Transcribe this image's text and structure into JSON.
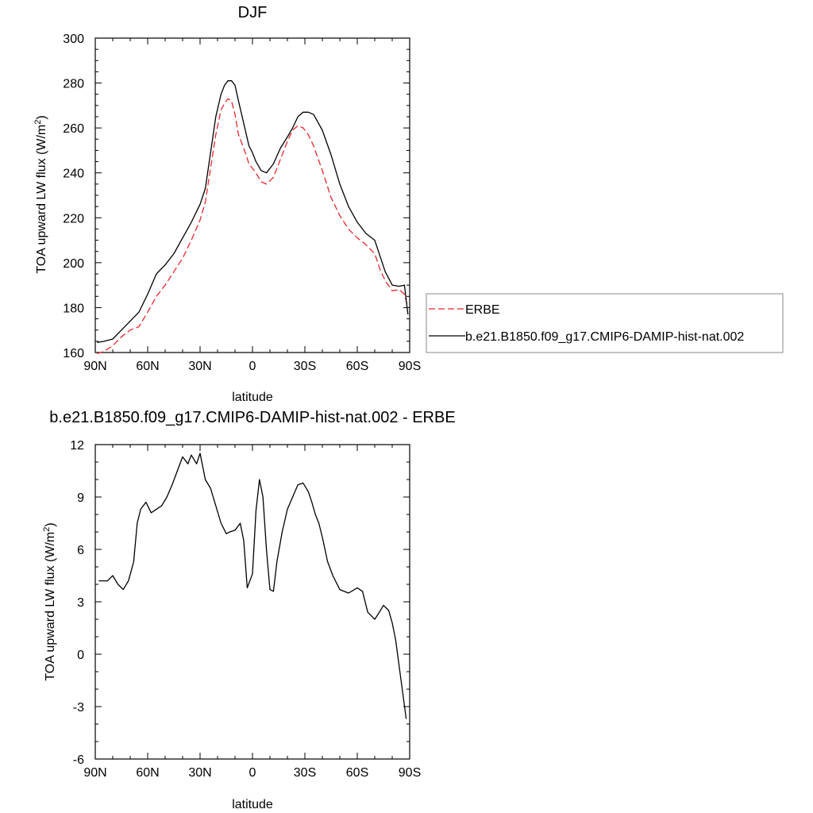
{
  "chart_data": [
    {
      "type": "line",
      "title": "DJF",
      "xlabel": "latitude",
      "ylabel": "TOA upward LW flux (W/m",
      "ylabel_superscript": "2",
      "ylabel_suffix": ")",
      "xlim": [
        -90,
        90
      ],
      "ylim": [
        160,
        300
      ],
      "xticks": [
        -90,
        -60,
        -30,
        0,
        30,
        60,
        90
      ],
      "xtick_labels": [
        "90N",
        "60N",
        "30N",
        "0",
        "30S",
        "60S",
        "90S"
      ],
      "yticks": [
        160,
        180,
        200,
        220,
        240,
        260,
        280,
        300
      ],
      "ytick_labels": [
        "160",
        "180",
        "200",
        "220",
        "240",
        "260",
        "280",
        "300"
      ],
      "legend_position": "right",
      "series": [
        {
          "name": "ERBE",
          "color": "#e8262b",
          "dash": "dashed",
          "x": [
            -89,
            -85,
            -80,
            -75,
            -70,
            -65,
            -60,
            -55,
            -50,
            -45,
            -40,
            -35,
            -30,
            -27,
            -24,
            -21,
            -18,
            -16,
            -14,
            -12,
            -10,
            -8,
            -5,
            -2,
            0,
            2,
            5,
            8,
            12,
            16,
            20,
            23,
            26,
            29,
            32,
            35,
            40,
            45,
            50,
            55,
            60,
            65,
            70,
            73,
            76,
            80,
            84,
            87,
            89
          ],
          "y": [
            159.5,
            160.5,
            163,
            167,
            170,
            171.5,
            178,
            185,
            190,
            196,
            202,
            210,
            219,
            227,
            242,
            257,
            268,
            271,
            273,
            272,
            266,
            257,
            251,
            244,
            242,
            240,
            236,
            235,
            238,
            246,
            254,
            259,
            261,
            260,
            257,
            252,
            241,
            229,
            221,
            215,
            211,
            208,
            204,
            197,
            192,
            187.5,
            188,
            186,
            180
          ]
        },
        {
          "name": "b.e21.B1850.f09_g17.CMIP6-DAMIP-hist-nat.002",
          "color": "#000000",
          "dash": "solid",
          "x": [
            -89,
            -85,
            -80,
            -75,
            -70,
            -65,
            -60,
            -55,
            -50,
            -45,
            -40,
            -35,
            -30,
            -27,
            -24,
            -21,
            -18,
            -16,
            -14,
            -12,
            -10,
            -8,
            -5,
            -2,
            0,
            2,
            5,
            8,
            12,
            16,
            20,
            23,
            26,
            29,
            32,
            35,
            40,
            45,
            50,
            55,
            60,
            65,
            70,
            73,
            76,
            80,
            84,
            87,
            89
          ],
          "y": [
            164.5,
            165,
            166,
            170,
            174,
            178,
            186,
            195,
            199,
            204,
            211,
            218,
            226,
            233,
            249,
            265,
            275,
            279,
            281,
            281,
            279,
            272,
            262,
            252,
            249,
            245,
            241,
            240,
            244,
            251,
            256,
            260,
            265,
            267,
            267,
            266,
            259,
            248,
            235,
            225,
            218,
            213,
            210,
            203,
            196,
            190,
            189.5,
            190,
            177
          ]
        }
      ]
    },
    {
      "type": "line",
      "title": "b.e21.B1850.f09_g17.CMIP6-DAMIP-hist-nat.002 - ERBE",
      "xlabel": "latitude",
      "ylabel": "TOA upward LW flux (W/m",
      "ylabel_superscript": "2",
      "ylabel_suffix": ")",
      "xlim": [
        -90,
        90
      ],
      "ylim": [
        -6,
        12
      ],
      "xticks": [
        -90,
        -60,
        -30,
        0,
        30,
        60,
        90
      ],
      "xtick_labels": [
        "90N",
        "60N",
        "30N",
        "0",
        "30S",
        "60S",
        "90S"
      ],
      "yticks": [
        -6,
        -3,
        0,
        3,
        6,
        9,
        12
      ],
      "ytick_labels": [
        "-6",
        "-3",
        "0",
        "3",
        "6",
        "9",
        "12"
      ],
      "series": [
        {
          "color": "#000000",
          "dash": "solid",
          "x": [
            -88,
            -83,
            -80,
            -77,
            -74,
            -71,
            -68,
            -66,
            -64,
            -61,
            -58,
            -55,
            -52,
            -49,
            -46,
            -43,
            -40,
            -37,
            -35,
            -32,
            -30,
            -27,
            -24,
            -21,
            -18,
            -15,
            -13,
            -10,
            -7,
            -5,
            -3,
            0,
            2,
            4,
            6,
            8,
            10,
            12,
            14,
            17,
            20,
            23,
            26,
            29,
            32,
            34,
            36,
            38,
            40,
            43,
            46,
            50,
            55,
            60,
            63,
            66,
            68,
            70,
            72,
            75,
            78,
            80,
            82,
            84,
            86,
            88
          ],
          "y": [
            4.2,
            4.2,
            4.5,
            4.0,
            3.7,
            4.2,
            5.3,
            7.5,
            8.3,
            8.7,
            8.1,
            8.3,
            8.5,
            9.0,
            9.7,
            10.5,
            11.3,
            10.9,
            11.4,
            10.9,
            11.5,
            10.0,
            9.5,
            8.5,
            7.5,
            6.9,
            7.0,
            7.1,
            7.5,
            6.5,
            3.8,
            4.6,
            8.2,
            10.0,
            9.0,
            6.0,
            3.7,
            3.6,
            5.3,
            7.0,
            8.3,
            9.0,
            9.7,
            9.8,
            9.3,
            8.7,
            8.0,
            7.5,
            6.7,
            5.3,
            4.5,
            3.7,
            3.5,
            3.8,
            3.6,
            2.4,
            2.2,
            2.0,
            2.3,
            2.8,
            2.5,
            1.8,
            0.8,
            -0.7,
            -2.2,
            -3.7
          ]
        }
      ]
    }
  ]
}
